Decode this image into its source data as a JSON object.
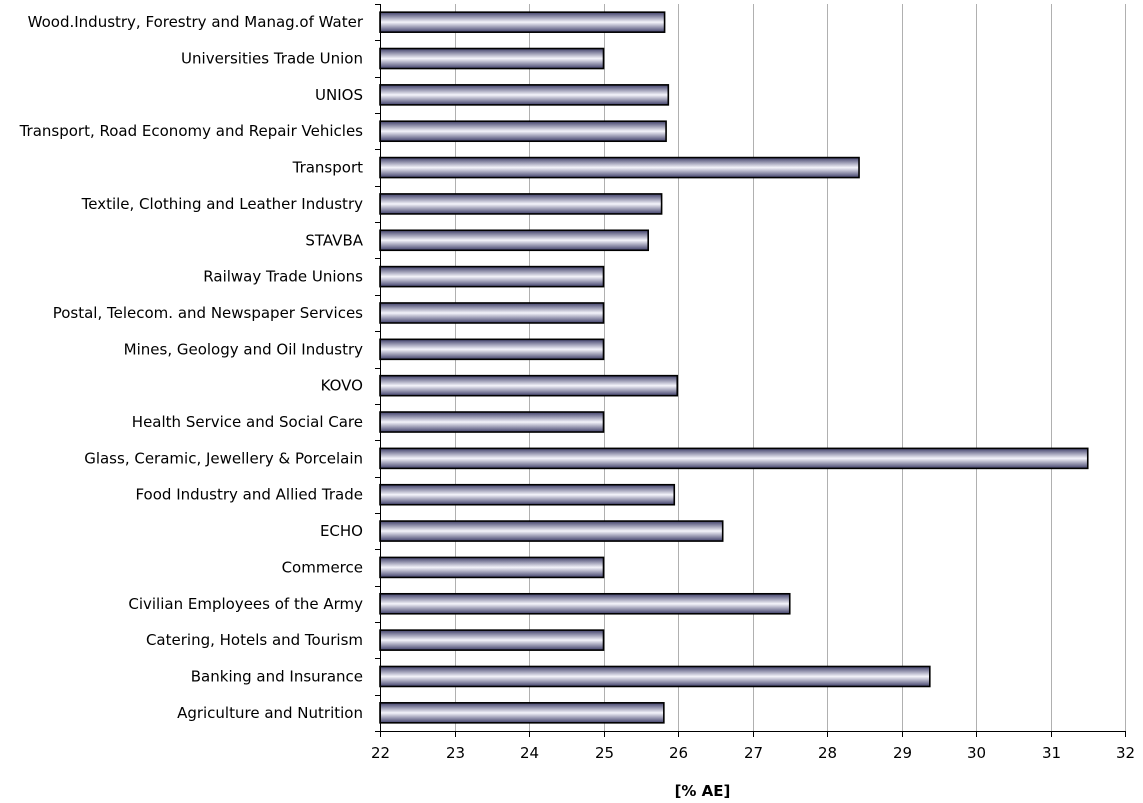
{
  "chart_data": {
    "type": "bar",
    "orientation": "horizontal",
    "categories": [
      "Wood.Industry, Forestry and Manag.of Water",
      "Universities Trade Union",
      "UNIOS",
      "Transport, Road Economy and Repair Vehicles",
      "Transport",
      "Textile, Clothing and Leather Industry",
      "STAVBA",
      "Railway Trade Unions",
      "Postal, Telecom. and Newspaper Services",
      "Mines, Geology and Oil Industry",
      "KOVO",
      "Health Service and Social Care",
      "Glass, Ceramic, Jewellery & Porcelain",
      "Food Industry and Allied Trade",
      "ECHO",
      "Commerce",
      "Civilian Employees of the Army",
      "Catering, Hotels and Tourism",
      "Banking and Insurance",
      "Agriculture and Nutrition"
    ],
    "values": [
      25.82,
      25.0,
      25.87,
      25.84,
      28.43,
      25.78,
      25.6,
      25.0,
      25.0,
      25.0,
      25.99,
      25.0,
      31.5,
      25.95,
      26.6,
      25.0,
      27.5,
      25.0,
      29.38,
      25.81
    ],
    "xlabel": "[% AE]",
    "ylabel": "",
    "title": "",
    "xlim": [
      22,
      32
    ],
    "xticks": [
      22,
      23,
      24,
      25,
      26,
      27,
      28,
      29,
      30,
      31,
      32
    ],
    "grid": "vertical",
    "legend": "none",
    "bar_color_dark": "#40406a",
    "bar_color_light": "#f4f4fb"
  }
}
